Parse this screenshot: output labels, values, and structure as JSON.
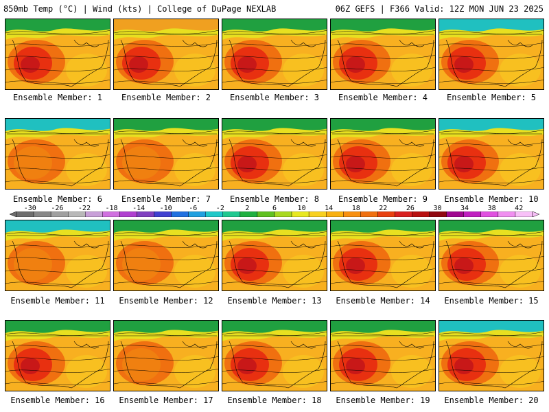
{
  "header": {
    "left": "850mb Temp (°C) | Wind (kts) | College of DuPage NEXLAB",
    "right": "06Z GEFS | F366 Valid: 12Z MON JUN 23 2025"
  },
  "members": [
    {
      "label": "Ensemble Member: 1",
      "tone": "hot",
      "north": "green"
    },
    {
      "label": "Ensemble Member: 2",
      "tone": "hot",
      "north": "orange"
    },
    {
      "label": "Ensemble Member: 3",
      "tone": "hot",
      "north": "green"
    },
    {
      "label": "Ensemble Member: 4",
      "tone": "hot",
      "north": "green"
    },
    {
      "label": "Ensemble Member: 5",
      "tone": "hot",
      "north": "cyan"
    },
    {
      "label": "Ensemble Member: 6",
      "tone": "warm",
      "north": "cyan"
    },
    {
      "label": "Ensemble Member: 7",
      "tone": "warm",
      "north": "green"
    },
    {
      "label": "Ensemble Member: 8",
      "tone": "hot",
      "north": "green"
    },
    {
      "label": "Ensemble Member: 9",
      "tone": "hot",
      "north": "green"
    },
    {
      "label": "Ensemble Member: 10",
      "tone": "hot",
      "north": "cyan"
    },
    {
      "label": "Ensemble Member: 11",
      "tone": "warm",
      "north": "cyan"
    },
    {
      "label": "Ensemble Member: 12",
      "tone": "warm",
      "north": "green"
    },
    {
      "label": "Ensemble Member: 13",
      "tone": "hot",
      "north": "green"
    },
    {
      "label": "Ensemble Member: 14",
      "tone": "hot",
      "north": "green"
    },
    {
      "label": "Ensemble Member: 15",
      "tone": "hot",
      "north": "green"
    },
    {
      "label": "Ensemble Member: 16",
      "tone": "hot",
      "north": "green"
    },
    {
      "label": "Ensemble Member: 17",
      "tone": "warm",
      "north": "green"
    },
    {
      "label": "Ensemble Member: 18",
      "tone": "hot",
      "north": "green"
    },
    {
      "label": "Ensemble Member: 19",
      "tone": "hot",
      "north": "green"
    },
    {
      "label": "Ensemble Member: 20",
      "tone": "hot",
      "north": "cyan"
    }
  ],
  "colorbar": {
    "ticks": [
      "-30",
      "-26",
      "-22",
      "-18",
      "-14",
      "-10",
      "-6",
      "-2",
      "2",
      "6",
      "10",
      "14",
      "18",
      "22",
      "26",
      "30",
      "34",
      "38",
      "42"
    ],
    "colors": [
      "#6e6e6e",
      "#888888",
      "#a0a0a0",
      "#b8b8b8",
      "#c8a0d8",
      "#d070e0",
      "#b040d0",
      "#8040c0",
      "#4040d0",
      "#2070e0",
      "#20a0e0",
      "#20c8c8",
      "#20c890",
      "#20b040",
      "#60c020",
      "#a8d820",
      "#e8e820",
      "#f8d020",
      "#f8b010",
      "#f89010",
      "#f07010",
      "#e84010",
      "#d82020",
      "#b81010",
      "#900810",
      "#a00890",
      "#c020c0",
      "#e050e0",
      "#f090f0",
      "#f8c0f8"
    ]
  }
}
